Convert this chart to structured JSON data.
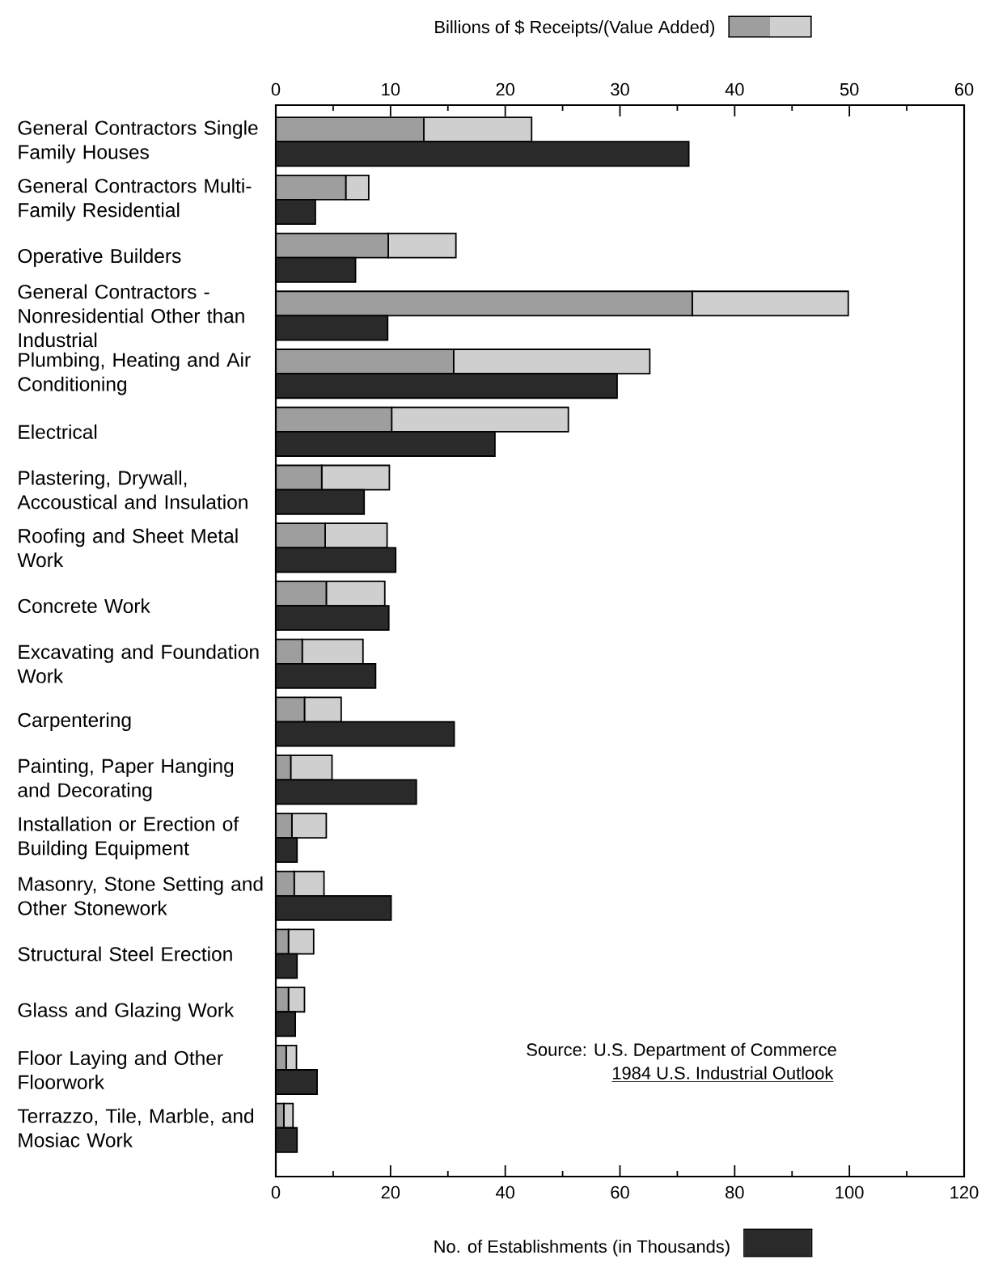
{
  "chart_data": [
    {
      "type": "bar",
      "orientation": "horizontal",
      "stacked": true,
      "xlabel": "Billions of $ Receipts/(Value Added)",
      "categories": [
        "General Contractors Single Family Houses",
        "General Contractors Multi-Family Residential",
        "Operative Builders",
        "General Contractors - Nonresidential Other than Industrial",
        "Plumbing, Heating and Air Conditioning",
        "Electrical",
        "Plastering, Drywall, Accoustical and Insulation",
        "Roofing and Sheet Metal Work",
        "Concrete Work",
        "Excavating and Foundation Work",
        "Carpentering",
        "Painting, Paper Hanging and Decorating",
        "Installation or Erection of Building Equipment",
        "Masonry, Stone Setting and Other Stonework",
        "Structural Steel Erection",
        "Glass and Glazing Work",
        "Floor Laying and Other Floorwork",
        "Terrazzo, Tile, Marble, and Mosiac Work"
      ],
      "series": [
        {
          "color": "#9e9e9e",
          "values": [
            12.9,
            6.1,
            9.8,
            36.3,
            15.5,
            10.1,
            4.0,
            4.3,
            4.4,
            2.3,
            2.5,
            1.3,
            1.4,
            1.6,
            1.1,
            1.1,
            0.9,
            0.7
          ]
        },
        {
          "color": "#cfcfcf",
          "values": [
            9.4,
            2.0,
            5.9,
            13.6,
            17.1,
            15.4,
            5.9,
            5.4,
            5.1,
            5.3,
            3.2,
            3.6,
            3.0,
            2.6,
            2.2,
            1.4,
            0.9,
            0.8
          ]
        }
      ],
      "xlim": [
        0,
        60
      ],
      "xticks": [
        0,
        {
          "value": 5,
          "label": null
        },
        10,
        {
          "value": 15,
          "label": null
        },
        20,
        {
          "value": 25,
          "label": null
        },
        30,
        {
          "value": 35,
          "label": null
        },
        40,
        {
          "value": 45,
          "label": null
        },
        50,
        {
          "value": 55,
          "label": null
        },
        60
      ]
    },
    {
      "type": "bar",
      "orientation": "horizontal",
      "tick_labels": "x",
      "xlabel": "No. of Establishments (in Thousands)",
      "categories": [
        null,
        null,
        null,
        null,
        null,
        null,
        null,
        null,
        null,
        null,
        null,
        null,
        null,
        null,
        null,
        null,
        null,
        null
      ],
      "series": [
        {
          "color": "#2a2a2a",
          "values": [
            72,
            6.9,
            13.9,
            19.5,
            59.5,
            38.2,
            15.4,
            20.9,
            19.7,
            17.4,
            31.1,
            24.5,
            3.7,
            20.1,
            3.7,
            3.4,
            7.2,
            3.7
          ]
        }
      ],
      "xlim": [
        0,
        120
      ],
      "xticks": [
        0,
        {
          "value": 10,
          "label": null
        },
        20,
        {
          "value": 30,
          "label": null
        },
        40,
        {
          "value": 50,
          "label": null
        },
        60,
        {
          "value": 70,
          "label": null
        },
        80,
        {
          "value": 90,
          "label": null
        },
        100,
        {
          "value": 110,
          "label": null
        },
        120
      ],
      "annotations": [
        "Source: U.S. Department of Commerce",
        "1984 U.S. Industrial Outlook"
      ]
    }
  ]
}
